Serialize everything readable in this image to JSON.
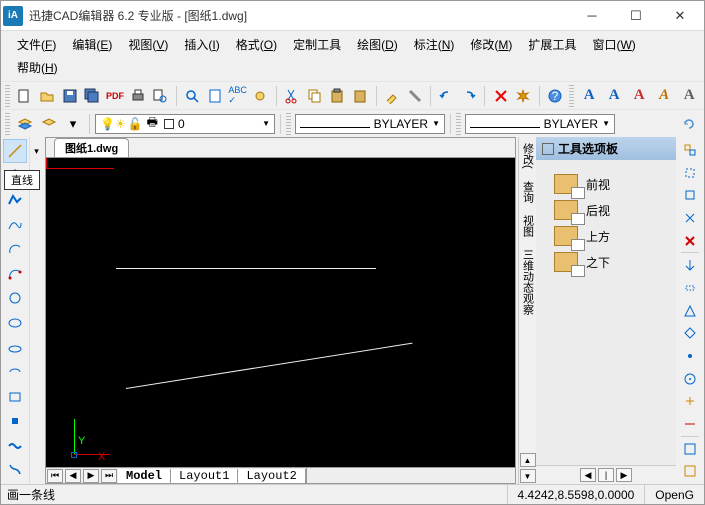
{
  "title": "迅捷CAD编辑器 6.2 专业版  -  [图纸1.dwg]",
  "menus": [
    "文件(F)",
    "编辑(E)",
    "视图(V)",
    "插入(I)",
    "格式(O)",
    "定制工具",
    "绘图(D)",
    "标注(N)",
    "修改(M)",
    "扩展工具",
    "窗口(W)",
    "帮助(H)"
  ],
  "doc_tab": "图纸1.dwg",
  "layer_combo": "0",
  "style_combo1": "BYLAYER",
  "style_combo2": "BYLAYER",
  "panel_title": "工具选项板",
  "panel_items": [
    "前视",
    "后视",
    "上方",
    "之下"
  ],
  "vtext_labels": [
    "修改(",
    "查询",
    "视图",
    "三维动态观察"
  ],
  "model_tabs": [
    "Model",
    "Layout1",
    "Layout2"
  ],
  "status_msg": "画一条线",
  "status_coords": "4.4242,8.5598,0.0000",
  "status_mode": "OpenG",
  "tooltip_text": "直线",
  "text_toolbar": [
    "A",
    "A",
    "A",
    "A",
    "A"
  ],
  "colors": {
    "text_btn": [
      "#1060c0",
      "#1060c0",
      "#c03030",
      "#c07000",
      "#606060"
    ],
    "canvas_bg": "#000000"
  }
}
